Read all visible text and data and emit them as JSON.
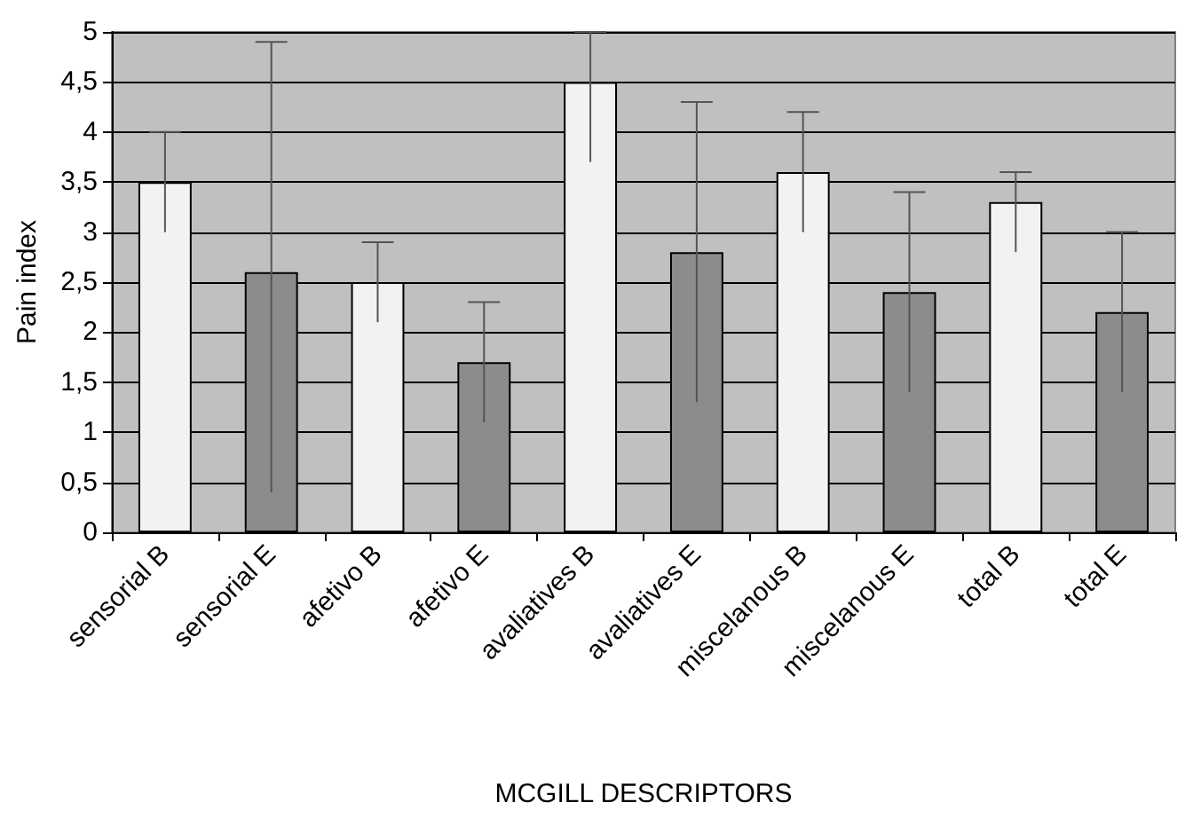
{
  "chart_data": {
    "type": "bar",
    "xlabel": "MCGILL DESCRIPTORS",
    "ylabel": "Pain index",
    "categories": [
      "sensorial B",
      "sensorial E",
      "afetivo B",
      "afetivo E",
      "avaliatives B",
      "avaliatives E",
      "miscelanous B",
      "miscelanous E",
      "total B",
      "total E"
    ],
    "values": [
      3.5,
      2.6,
      2.5,
      1.7,
      4.5,
      2.8,
      3.6,
      2.4,
      3.3,
      2.2
    ],
    "colors": [
      "#f2f2f2",
      "#8c8c8c",
      "#f2f2f2",
      "#8c8c8c",
      "#f2f2f2",
      "#8c8c8c",
      "#f2f2f2",
      "#8c8c8c",
      "#f2f2f2",
      "#8c8c8c"
    ],
    "errors": [
      [
        3.0,
        4.0
      ],
      [
        0.4,
        4.9
      ],
      [
        2.1,
        2.9
      ],
      [
        1.1,
        2.3
      ],
      [
        3.7,
        5.0
      ],
      [
        1.3,
        4.3
      ],
      [
        3.0,
        4.2
      ],
      [
        1.4,
        3.4
      ],
      [
        2.8,
        3.6
      ],
      [
        1.4,
        3.0
      ]
    ],
    "ylim": [
      0,
      5
    ],
    "yticks": [
      0,
      {
        "value": 0.5,
        "label": "0,5"
      },
      1,
      {
        "value": 1.5,
        "label": "1,5"
      },
      2,
      {
        "value": 2.5,
        "label": "2,5"
      },
      3,
      {
        "value": 3.5,
        "label": "3,5"
      },
      4,
      {
        "value": 4.5,
        "label": "4,5"
      },
      5
    ],
    "grid": "y"
  }
}
